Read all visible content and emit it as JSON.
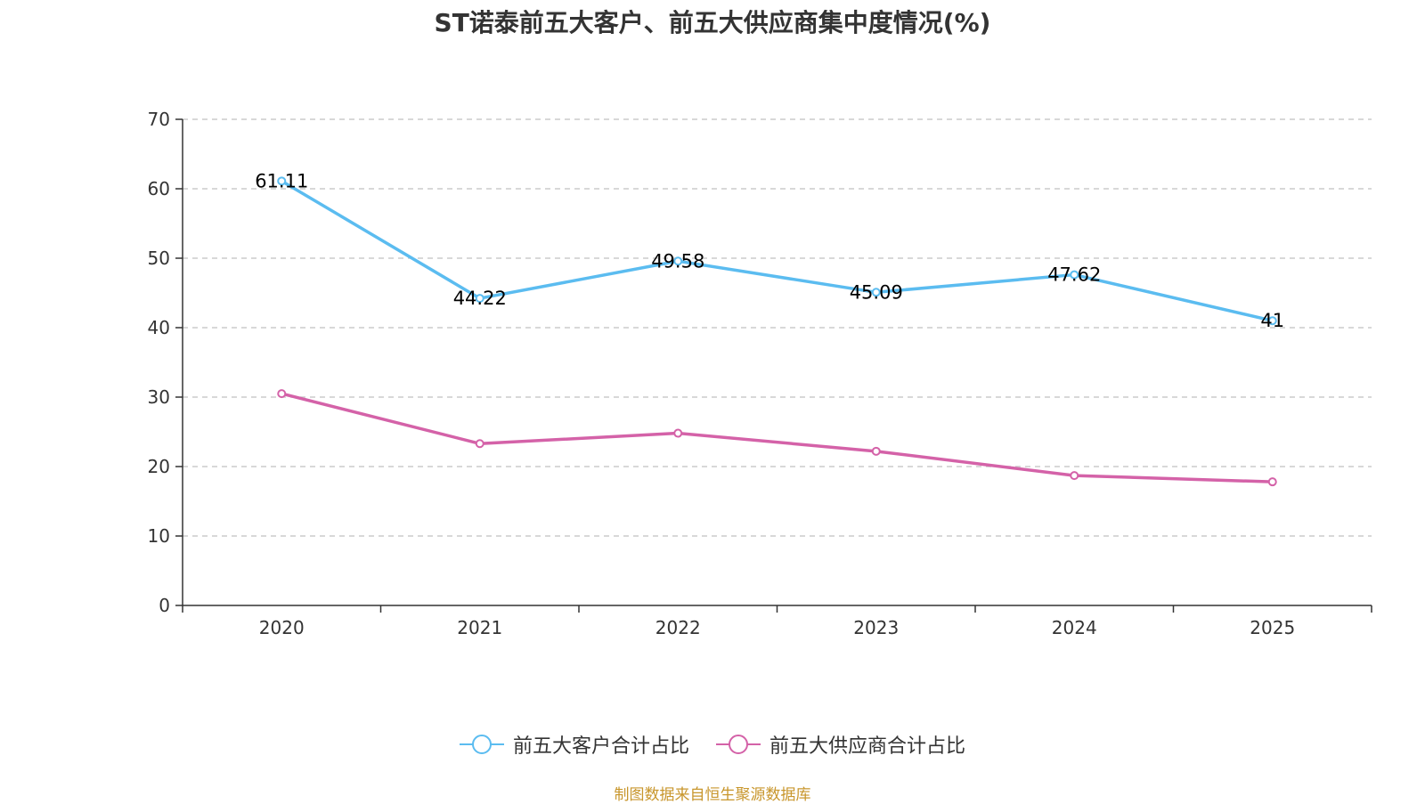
{
  "chart_data": {
    "type": "line",
    "title": "ST诺泰前五大客户、前五大供应商集中度情况(%)",
    "categories": [
      "2020",
      "2021",
      "2022",
      "2023",
      "2024",
      "2025"
    ],
    "ylim": [
      0,
      70
    ],
    "yticks": [
      0,
      10,
      20,
      30,
      40,
      50,
      60,
      70
    ],
    "grid": true,
    "xlabel": "",
    "ylabel": "",
    "series": [
      {
        "name": "前五大客户合计占比",
        "color": "#5bbcf0",
        "values": [
          61.11,
          44.22,
          49.58,
          45.09,
          47.62,
          41
        ],
        "labels": [
          "61.11",
          "44.22",
          "49.58",
          "45.09",
          "47.62",
          "41"
        ],
        "show_labels": true
      },
      {
        "name": "前五大供应商合计占比",
        "color": "#d462a8",
        "values": [
          30.5,
          23.3,
          24.8,
          22.2,
          18.7,
          17.8
        ],
        "show_labels": false
      }
    ],
    "legend_position": "bottom-center"
  },
  "source_note": "制图数据来自恒生聚源数据库"
}
